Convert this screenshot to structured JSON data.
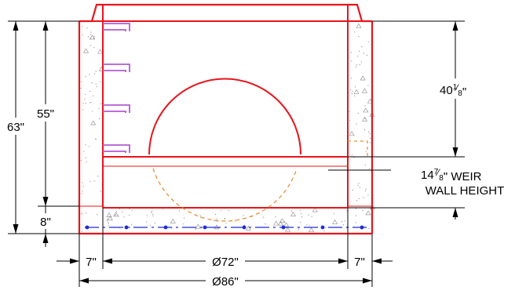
{
  "drawing": {
    "type": "manhole weir wall section",
    "colors": {
      "structure": "#e8141b",
      "steps": "#b45ad2",
      "hidden_pipe": "#e8913a",
      "rebar": "#1f2bd6",
      "dimension": "#000000"
    },
    "dimensions": {
      "total_height": "63\"",
      "inner_height": "55\"",
      "base_thickness": "8\"",
      "pipe_height": "40",
      "pipe_fraction_num": "1",
      "pipe_fraction_den": "8",
      "pipe_fraction_unit": "\"",
      "weir_height": "14",
      "weir_fraction_num": "7",
      "weir_fraction_den": "8",
      "weir_unit_text": "\" WEIR",
      "weir_label_line2": "WALL HEIGHT",
      "left_wall": "7\"",
      "inner_diameter": "Ø72\"",
      "right_wall": "7\"",
      "outer_diameter": "Ø86\""
    },
    "icons": {
      "steps": "ladder-rung-icon",
      "rebar": "rebar-dot-icon"
    }
  }
}
